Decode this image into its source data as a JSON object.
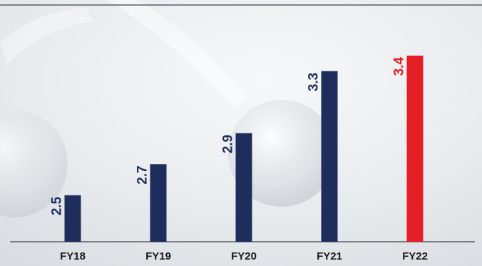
{
  "chart_data": {
    "type": "bar",
    "title": "",
    "xlabel": "",
    "ylabel": "",
    "categories": [
      "FY18",
      "FY19",
      "FY20",
      "FY21",
      "FY22"
    ],
    "values": [
      2.5,
      2.7,
      2.9,
      3.3,
      3.4
    ],
    "value_labels": [
      "2.5",
      "2.7",
      "2.9",
      "3.3",
      "3.4"
    ],
    "highlight_index": 4,
    "ylim": [
      0,
      3.4
    ],
    "grid": false,
    "legend": "none"
  },
  "colors": {
    "bar": "#1f2d5c",
    "highlight": "#e31e24",
    "axis": "#5a5f66",
    "category_text": "#1a1a1a"
  }
}
